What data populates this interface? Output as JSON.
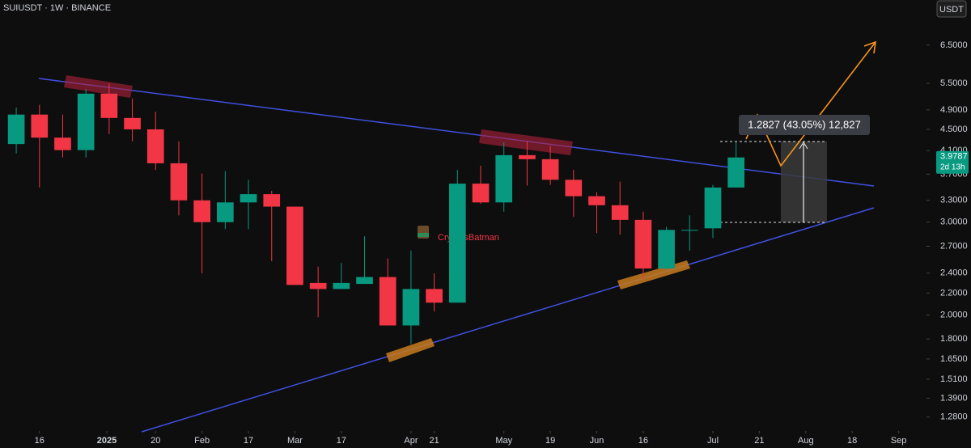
{
  "chart_data": {
    "type": "candlestick",
    "title": "SUIUSDT · 1W · BINANCE",
    "currency": "USDT",
    "watermark": "CryptosBatman",
    "measurement": "1.2827 (43.05%) 12,827",
    "last_price": 3.9787,
    "countdown": "2d 13h",
    "up_color": "#089981",
    "down_color": "#f23645",
    "log_scale": true,
    "grid": false,
    "categories": [
      null,
      null,
      null,
      null,
      null,
      null,
      null,
      null,
      null,
      null,
      null,
      null,
      null,
      null,
      null,
      null,
      null,
      null,
      null,
      null,
      null,
      null,
      null,
      null,
      null,
      null,
      null,
      null,
      null,
      null,
      null,
      null
    ],
    "open": [
      4.22,
      4.8,
      4.34,
      4.11,
      5.26,
      4.73,
      4.5,
      3.88,
      3.3,
      3.0,
      3.27,
      3.39,
      3.21,
      2.3,
      2.24,
      2.29,
      2.36,
      1.91,
      2.24,
      2.11,
      3.55,
      3.27,
      4.02,
      3.95,
      3.61,
      3.36,
      3.23,
      3.03,
      2.45,
      2.89,
      2.92,
      3.49
    ],
    "high": [
      4.95,
      5.01,
      4.8,
      5.37,
      5.5,
      5.15,
      4.86,
      4.27,
      3.71,
      3.75,
      3.61,
      3.44,
      3.21,
      2.47,
      2.51,
      2.82,
      2.56,
      2.65,
      2.4,
      3.77,
      3.84,
      4.25,
      4.27,
      4.19,
      3.77,
      3.42,
      3.58,
      3.14,
      2.94,
      3.09,
      3.53,
      4.25
    ],
    "low": [
      4.05,
      3.49,
      3.98,
      3.98,
      4.41,
      4.27,
      3.77,
      3.09,
      2.4,
      2.91,
      2.91,
      2.53,
      2.28,
      1.98,
      2.24,
      2.29,
      1.91,
      1.76,
      2.03,
      2.11,
      3.25,
      3.14,
      3.52,
      3.53,
      3.07,
      2.86,
      2.84,
      2.34,
      2.44,
      2.65,
      2.8,
      3.49
    ],
    "close": [
      4.8,
      4.34,
      4.11,
      5.26,
      4.73,
      4.5,
      3.88,
      3.3,
      3.0,
      3.27,
      3.39,
      3.21,
      2.28,
      2.24,
      2.3,
      2.36,
      1.91,
      2.24,
      2.11,
      3.55,
      3.27,
      4.02,
      3.95,
      3.61,
      3.36,
      3.23,
      3.03,
      2.45,
      2.9,
      2.9,
      3.49,
      3.98
    ],
    "xlim": [
      -0.7,
      39.2
    ],
    "xticks": [
      {
        "value": 1,
        "label": "16"
      },
      {
        "value": 3.9,
        "label": "2025"
      },
      {
        "value": 6,
        "label": "20"
      },
      {
        "value": 8,
        "label": "Feb"
      },
      {
        "value": 10,
        "label": "17"
      },
      {
        "value": 12,
        "label": "Mar"
      },
      {
        "value": 14,
        "label": "17"
      },
      {
        "value": 17,
        "label": "Apr"
      },
      {
        "value": 18,
        "label": "21"
      },
      {
        "value": 21,
        "label": "May"
      },
      {
        "value": 23,
        "label": "19"
      },
      {
        "value": 25,
        "label": "Jun"
      },
      {
        "value": 27,
        "label": "16"
      },
      {
        "value": 30,
        "label": "Jul"
      },
      {
        "value": 32,
        "label": "21"
      },
      {
        "value": 34,
        "label": "Aug"
      },
      {
        "value": 36,
        "label": "18"
      },
      {
        "value": 38,
        "label": "Sep"
      }
    ],
    "ylim": [
      1.118,
      7.92
    ],
    "yticks": [
      {
        "value": 1.28,
        "label": "1.2800"
      },
      {
        "value": 1.39,
        "label": "1.3900"
      },
      {
        "value": 1.51,
        "label": "1.5100"
      },
      {
        "value": 1.65,
        "label": "1.6500"
      },
      {
        "value": 1.8,
        "label": "1.8000"
      },
      {
        "value": 2,
        "label": "2.0000"
      },
      {
        "value": 2.2,
        "label": "2.2000"
      },
      {
        "value": 2.4,
        "label": "2.4000"
      },
      {
        "value": 2.7,
        "label": "2.7000"
      },
      {
        "value": 3,
        "label": "3.0000"
      },
      {
        "value": 3.3,
        "label": "3.3000"
      },
      {
        "value": 3.7,
        "label": "3.7000"
      },
      {
        "value": 4.1,
        "label": "4.1000"
      },
      {
        "value": 4.5,
        "label": "4.5000"
      },
      {
        "value": 4.9,
        "label": "4.9000"
      },
      {
        "value": 5.5,
        "label": "5.5000"
      },
      {
        "value": 6.5,
        "label": "6.5000"
      }
    ]
  }
}
